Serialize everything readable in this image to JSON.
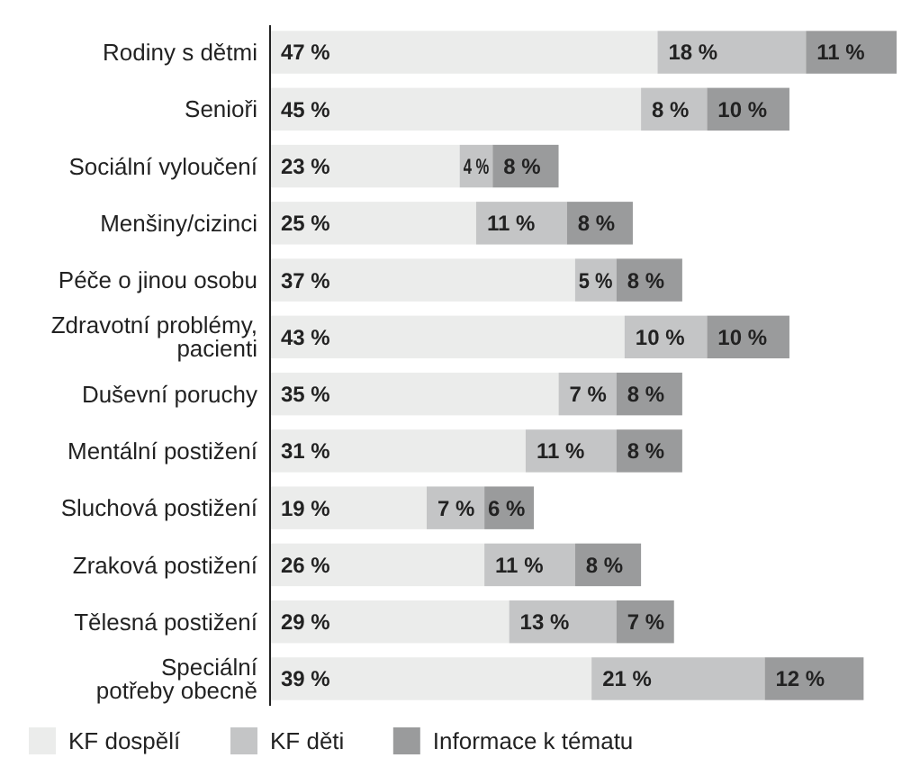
{
  "chart_data": {
    "type": "bar",
    "orientation": "horizontal",
    "stacked": true,
    "legend": "bottom left",
    "categories": [
      "Rodiny s dětmi",
      "Senioři",
      "Sociální vyloučení",
      "Menšiny/cizinci",
      "Péče o jinou osobu",
      "Zdravotní problémy,\npacienti",
      "Duševní poruchy",
      "Mentální postižení",
      "Sluchová postižení",
      "Zraková postižení",
      "Tělesná postižení",
      "Speciální\npotřeby obecně"
    ],
    "series": [
      {
        "name": "KF dospělí",
        "color": "#ebeceb",
        "values": [
          47,
          45,
          23,
          25,
          37,
          43,
          35,
          31,
          19,
          26,
          29,
          39
        ],
        "value_labels": [
          "47 %",
          "45 %",
          "23 %",
          "25 %",
          "37 %",
          "43 %",
          "35 %",
          "31 %",
          "19 %",
          "26 %",
          "29 %",
          "39 %"
        ]
      },
      {
        "name": "KF děti",
        "color": "#c4c5c6",
        "values": [
          18,
          8,
          4,
          11,
          5,
          10,
          7,
          11,
          7,
          11,
          13,
          21
        ],
        "value_labels": [
          "18 %",
          "8 %",
          "4 %",
          "11 %",
          "5 %",
          "10 %",
          "7 %",
          "11 %",
          "7 %",
          "11 %",
          "13 %",
          "21 %"
        ]
      },
      {
        "name": "Informace k tématu",
        "color": "#9a9b9c",
        "values": [
          11,
          10,
          8,
          8,
          8,
          10,
          8,
          8,
          6,
          8,
          7,
          12
        ],
        "value_labels": [
          "11 %",
          "10 %",
          "8 %",
          "8 %",
          "8 %",
          "10 %",
          "8 %",
          "8 %",
          "6 %",
          "8 %",
          "7 %",
          "12 %"
        ]
      }
    ]
  }
}
